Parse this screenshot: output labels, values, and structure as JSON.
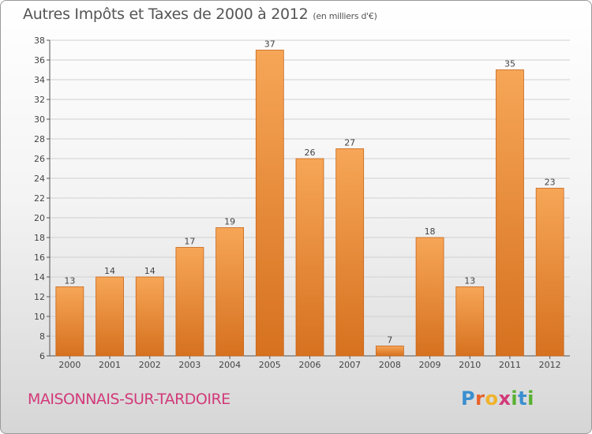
{
  "title": "Autres Impôts et Taxes de 2000 à 2012",
  "subtitle": "(en milliers d'€)",
  "city": "MAISONNAIS-SUR-TARDOIRE",
  "logo": {
    "letters": [
      "P",
      "r",
      "o",
      "x",
      "i",
      "t",
      "i"
    ],
    "colors": [
      "#3a8fd0",
      "#e8622a",
      "#f0b32a",
      "#d23a7a",
      "#58b030",
      "#3a8fd0",
      "#58b030"
    ]
  },
  "colors": {
    "bar_light": "#f6a657",
    "bar_dark": "#d6711f",
    "bar_edge": "#c86418",
    "grid": "#d0d0d0",
    "title": "#555555",
    "city": "#d23a7a"
  },
  "chart_data": {
    "type": "bar",
    "title": "Autres Impôts et Taxes de 2000 à 2012",
    "subtitle": "(en milliers d'€)",
    "categories": [
      "2000",
      "2001",
      "2002",
      "2003",
      "2004",
      "2005",
      "2006",
      "2007",
      "2008",
      "2009",
      "2010",
      "2011",
      "2012"
    ],
    "values": [
      13,
      14,
      14,
      17,
      19,
      37,
      26,
      27,
      7,
      18,
      13,
      35,
      23
    ],
    "ylim": [
      6,
      38
    ],
    "yticks": [
      6,
      8,
      10,
      12,
      14,
      16,
      18,
      20,
      22,
      24,
      26,
      28,
      30,
      32,
      34,
      36,
      38
    ],
    "grid": true,
    "legend": false
  }
}
